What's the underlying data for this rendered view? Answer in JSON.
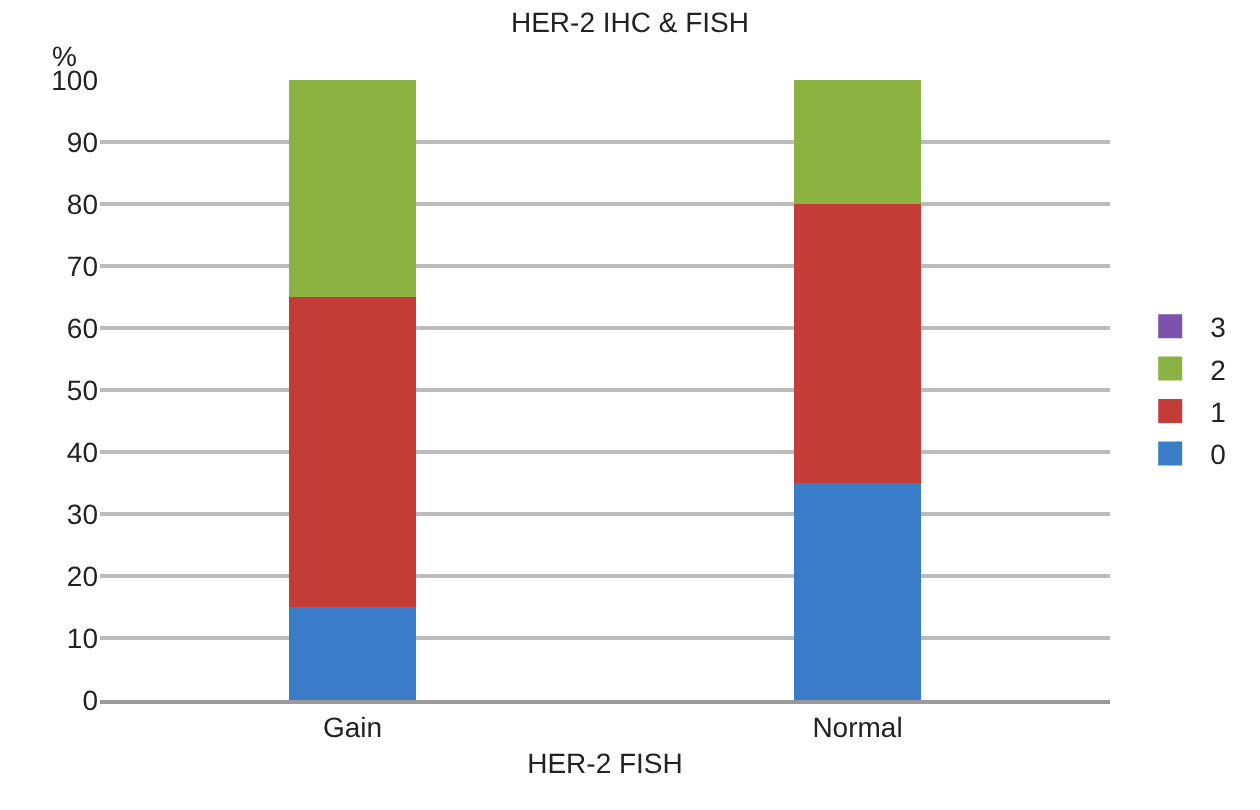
{
  "chart_data": {
    "type": "bar",
    "title": "HER-2 IHC & FISH",
    "xlabel": "HER-2 FISH",
    "ylabel": "%",
    "categories": [
      "Gain",
      "Normal"
    ],
    "stacked": true,
    "series": [
      {
        "name": "0",
        "color": "#3b7cc9",
        "values": [
          15,
          35
        ]
      },
      {
        "name": "1",
        "color": "#c43c38",
        "values": [
          50,
          45
        ]
      },
      {
        "name": "2",
        "color": "#8ab342",
        "values": [
          35,
          20
        ]
      },
      {
        "name": "3",
        "color": "#7b52ab",
        "values": [
          0,
          0
        ]
      }
    ],
    "ylim": [
      0,
      100
    ],
    "yticks": [
      0,
      10,
      20,
      30,
      40,
      50,
      60,
      70,
      80,
      90,
      100
    ],
    "grid": "y",
    "legend": "right"
  }
}
